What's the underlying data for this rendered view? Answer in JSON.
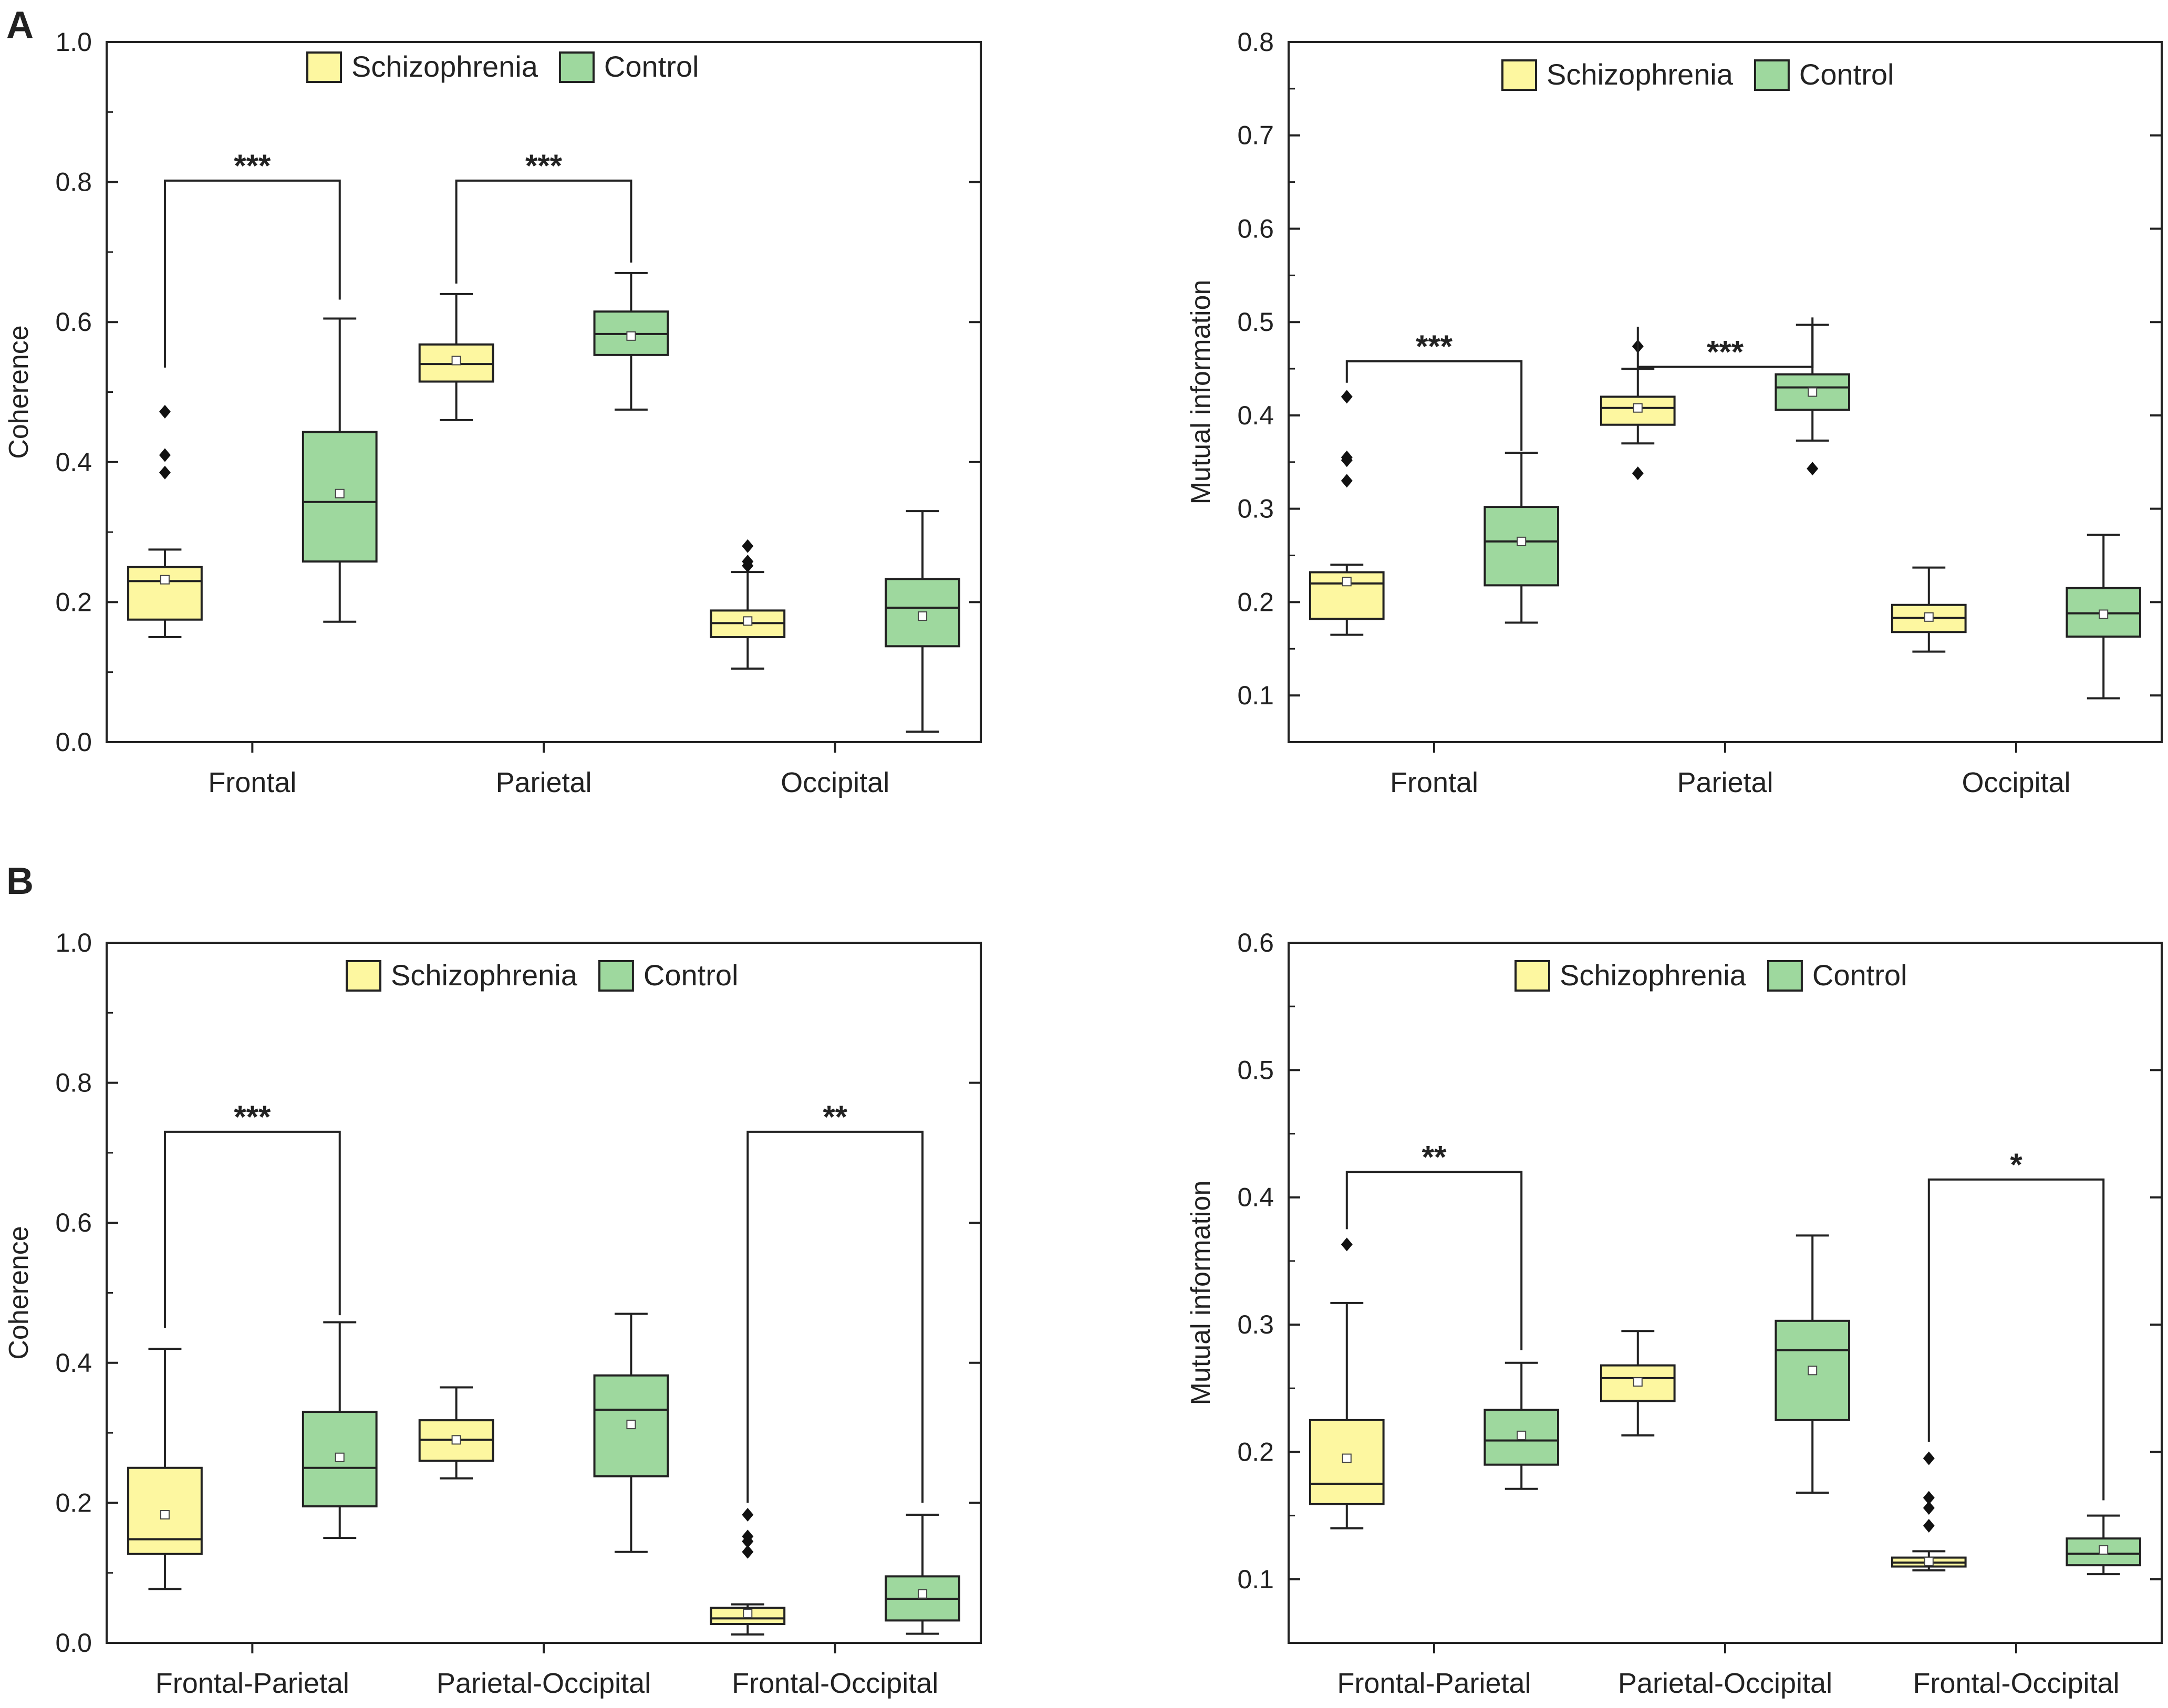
{
  "panel_labels": [
    "A",
    "B"
  ],
  "colors": {
    "schizophrenia": "#fdf7a0",
    "control": "#9ed89e",
    "stroke": "#222222"
  },
  "chart_data": [
    {
      "type": "box",
      "panel": "A",
      "ylabel": "Coherence",
      "ylim": [
        0,
        1.0
      ],
      "yticks": [
        "0.0",
        "0.2",
        "0.4",
        "0.6",
        "0.8",
        "1.0"
      ],
      "categories": [
        "Frontal",
        "Parietal",
        "Occipital"
      ],
      "legend": [
        "Schizophrenia",
        "Control"
      ],
      "series": [
        {
          "name": "Schizophrenia",
          "boxes": [
            {
              "whisker_low": 0.15,
              "q1": 0.175,
              "median": 0.23,
              "q3": 0.25,
              "whisker_high": 0.275,
              "mean": 0.232,
              "outliers": [
                0.385,
                0.41,
                0.472
              ]
            },
            {
              "whisker_low": 0.46,
              "q1": 0.515,
              "median": 0.54,
              "q3": 0.568,
              "whisker_high": 0.64,
              "mean": 0.545,
              "outliers": []
            },
            {
              "whisker_low": 0.105,
              "q1": 0.15,
              "median": 0.17,
              "q3": 0.188,
              "whisker_high": 0.243,
              "mean": 0.173,
              "outliers": [
                0.252,
                0.258,
                0.28
              ]
            }
          ]
        },
        {
          "name": "Control",
          "boxes": [
            {
              "whisker_low": 0.172,
              "q1": 0.258,
              "median": 0.343,
              "q3": 0.443,
              "whisker_high": 0.605,
              "mean": 0.355,
              "outliers": []
            },
            {
              "whisker_low": 0.475,
              "q1": 0.553,
              "median": 0.583,
              "q3": 0.615,
              "whisker_high": 0.67,
              "mean": 0.58,
              "outliers": []
            },
            {
              "whisker_low": 0.015,
              "q1": 0.137,
              "median": 0.192,
              "q3": 0.233,
              "whisker_high": 0.33,
              "mean": 0.18,
              "outliers": []
            }
          ]
        }
      ],
      "significance": [
        {
          "category": 0,
          "label": "***",
          "y": 0.802,
          "left_y": 0.535,
          "right_y": 0.632
        },
        {
          "category": 1,
          "label": "***",
          "y": 0.802,
          "left_y": 0.655,
          "right_y": 0.685
        }
      ]
    },
    {
      "type": "box",
      "panel": "A",
      "ylabel": "Mutual information",
      "ylim": [
        0.05,
        0.8
      ],
      "yticks": [
        "0.1",
        "0.2",
        "0.3",
        "0.4",
        "0.5",
        "0.6",
        "0.7",
        "0.8"
      ],
      "categories": [
        "Frontal",
        "Parietal",
        "Occipital"
      ],
      "legend": [
        "Schizophrenia",
        "Control"
      ],
      "series": [
        {
          "name": "Schizophrenia",
          "boxes": [
            {
              "whisker_low": 0.165,
              "q1": 0.182,
              "median": 0.22,
              "q3": 0.232,
              "whisker_high": 0.24,
              "mean": 0.222,
              "outliers": [
                0.33,
                0.352,
                0.355,
                0.42
              ]
            },
            {
              "whisker_low": 0.37,
              "q1": 0.39,
              "median": 0.408,
              "q3": 0.42,
              "whisker_high": 0.45,
              "mean": 0.408,
              "outliers": [
                0.338,
                0.474
              ]
            },
            {
              "whisker_low": 0.147,
              "q1": 0.168,
              "median": 0.183,
              "q3": 0.197,
              "whisker_high": 0.237,
              "mean": 0.184,
              "outliers": []
            }
          ]
        },
        {
          "name": "Control",
          "boxes": [
            {
              "whisker_low": 0.178,
              "q1": 0.218,
              "median": 0.265,
              "q3": 0.302,
              "whisker_high": 0.36,
              "mean": 0.265,
              "outliers": []
            },
            {
              "whisker_low": 0.373,
              "q1": 0.406,
              "median": 0.43,
              "q3": 0.444,
              "whisker_high": 0.497,
              "mean": 0.425,
              "outliers": [
                0.343
              ]
            },
            {
              "whisker_low": 0.097,
              "q1": 0.163,
              "median": 0.188,
              "q3": 0.215,
              "whisker_high": 0.272,
              "mean": 0.187,
              "outliers": []
            }
          ]
        }
      ],
      "significance": [
        {
          "category": 0,
          "label": "***",
          "y": 0.458,
          "left_y": 0.435,
          "right_y": 0.362
        },
        {
          "category": 1,
          "label": "***",
          "y": 0.452,
          "left_y": 0.495,
          "right_y": 0.505
        }
      ]
    },
    {
      "type": "box",
      "panel": "B",
      "ylabel": "Coherence",
      "ylim": [
        0,
        1.0
      ],
      "yticks": [
        "0.0",
        "0.2",
        "0.4",
        "0.6",
        "0.8",
        "1.0"
      ],
      "categories": [
        "Frontal-Parietal",
        "Parietal-Occipital",
        "Frontal-Occipital"
      ],
      "legend": [
        "Schizophrenia",
        "Control"
      ],
      "series": [
        {
          "name": "Schizophrenia",
          "boxes": [
            {
              "whisker_low": 0.077,
              "q1": 0.127,
              "median": 0.148,
              "q3": 0.25,
              "whisker_high": 0.42,
              "mean": 0.183,
              "outliers": []
            },
            {
              "whisker_low": 0.235,
              "q1": 0.26,
              "median": 0.29,
              "q3": 0.318,
              "whisker_high": 0.365,
              "mean": 0.29,
              "outliers": []
            },
            {
              "whisker_low": 0.012,
              "q1": 0.027,
              "median": 0.035,
              "q3": 0.05,
              "whisker_high": 0.055,
              "mean": 0.042,
              "outliers": [
                0.13,
                0.145,
                0.152,
                0.183
              ]
            }
          ]
        },
        {
          "name": "Control",
          "boxes": [
            {
              "whisker_low": 0.15,
              "q1": 0.195,
              "median": 0.25,
              "q3": 0.33,
              "whisker_high": 0.458,
              "mean": 0.265,
              "outliers": []
            },
            {
              "whisker_low": 0.13,
              "q1": 0.238,
              "median": 0.333,
              "q3": 0.382,
              "whisker_high": 0.47,
              "mean": 0.312,
              "outliers": []
            },
            {
              "whisker_low": 0.013,
              "q1": 0.032,
              "median": 0.063,
              "q3": 0.095,
              "whisker_high": 0.183,
              "mean": 0.07,
              "outliers": []
            }
          ]
        }
      ],
      "significance": [
        {
          "category": 0,
          "label": "***",
          "y": 0.73,
          "left_y": 0.45,
          "right_y": 0.468
        },
        {
          "category": 2,
          "label": "**",
          "y": 0.73,
          "left_y": 0.2,
          "right_y": 0.2
        }
      ]
    },
    {
      "type": "box",
      "panel": "B",
      "ylabel": "Mutual information",
      "ylim": [
        0.05,
        0.6
      ],
      "yticks": [
        "0.1",
        "0.2",
        "0.3",
        "0.4",
        "0.5",
        "0.6"
      ],
      "categories": [
        "Frontal-Parietal",
        "Parietal-Occipital",
        "Frontal-Occipital"
      ],
      "legend": [
        "Schizophrenia",
        "Control"
      ],
      "series": [
        {
          "name": "Schizophrenia",
          "boxes": [
            {
              "whisker_low": 0.14,
              "q1": 0.159,
              "median": 0.175,
              "q3": 0.225,
              "whisker_high": 0.317,
              "mean": 0.195,
              "outliers": [
                0.363
              ]
            },
            {
              "whisker_low": 0.213,
              "q1": 0.24,
              "median": 0.258,
              "q3": 0.268,
              "whisker_high": 0.295,
              "mean": 0.255,
              "outliers": []
            },
            {
              "whisker_low": 0.107,
              "q1": 0.11,
              "median": 0.113,
              "q3": 0.117,
              "whisker_high": 0.122,
              "mean": 0.114,
              "outliers": [
                0.142,
                0.156,
                0.164,
                0.195
              ]
            }
          ]
        },
        {
          "name": "Control",
          "boxes": [
            {
              "whisker_low": 0.171,
              "q1": 0.19,
              "median": 0.209,
              "q3": 0.233,
              "whisker_high": 0.27,
              "mean": 0.213,
              "outliers": []
            },
            {
              "whisker_low": 0.168,
              "q1": 0.225,
              "median": 0.28,
              "q3": 0.303,
              "whisker_high": 0.37,
              "mean": 0.264,
              "outliers": []
            },
            {
              "whisker_low": 0.104,
              "q1": 0.111,
              "median": 0.12,
              "q3": 0.132,
              "whisker_high": 0.15,
              "mean": 0.123,
              "outliers": []
            }
          ]
        }
      ],
      "significance": [
        {
          "category": 0,
          "label": "**",
          "y": 0.42,
          "left_y": 0.375,
          "right_y": 0.28
        },
        {
          "category": 2,
          "label": "*",
          "y": 0.414,
          "left_y": 0.208,
          "right_y": 0.162
        }
      ]
    }
  ]
}
